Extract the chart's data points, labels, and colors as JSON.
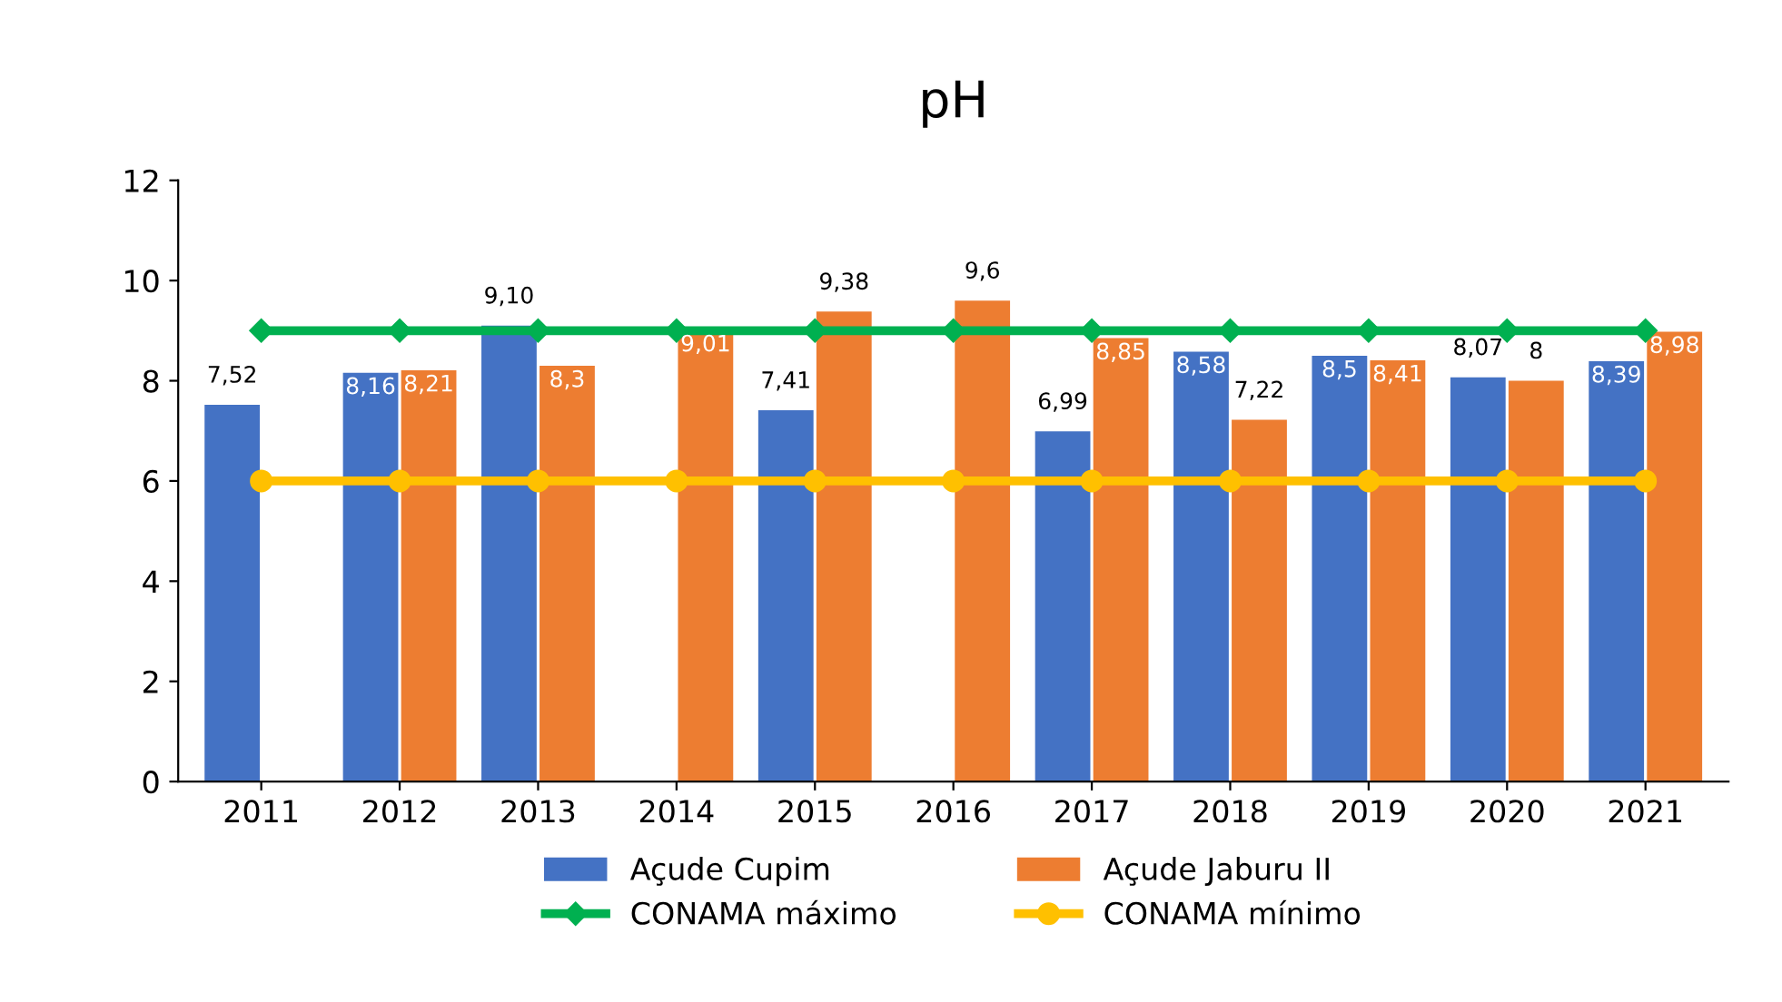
{
  "chart_data": {
    "type": "bar",
    "title": "pH",
    "categories": [
      "2011",
      "2012",
      "2013",
      "2014",
      "2015",
      "2016",
      "2017",
      "2018",
      "2019",
      "2020",
      "2021"
    ],
    "series": [
      {
        "name": "Açude Cupim",
        "color": "#4472c4",
        "values": [
          7.52,
          8.16,
          9.1,
          null,
          7.41,
          null,
          6.99,
          8.58,
          8.5,
          8.07,
          8.39
        ],
        "value_labels": [
          "7,52",
          "8,16",
          "9,10",
          null,
          "7,41",
          null,
          "6,99",
          "8,58",
          "8,5",
          "8,07",
          "8,39"
        ]
      },
      {
        "name": "Açude Jaburu II",
        "color": "#ed7d31",
        "values": [
          null,
          8.21,
          8.3,
          9.01,
          9.38,
          9.6,
          8.85,
          7.22,
          8.41,
          8,
          8.98
        ],
        "value_labels": [
          null,
          "8,21",
          "8,3",
          "9,01",
          "9,38",
          "9,6",
          "8,85",
          "7,22",
          "8,41",
          "8",
          "8,98"
        ]
      },
      {
        "name": "CONAMA máximo",
        "type": "line",
        "color": "#00b050",
        "marker": "diamond",
        "values": [
          9,
          9,
          9,
          9,
          9,
          9,
          9,
          9,
          9,
          9,
          9
        ]
      },
      {
        "name": "CONAMA mínimo",
        "type": "line",
        "color": "#ffc000",
        "marker": "circle",
        "values": [
          6,
          6,
          6,
          6,
          6,
          6,
          6,
          6,
          6,
          6,
          6
        ]
      }
    ],
    "ylim": [
      0,
      12
    ],
    "yticks": [
      0,
      2,
      4,
      6,
      8,
      10,
      12
    ],
    "grid": false,
    "legend": "bottom"
  }
}
